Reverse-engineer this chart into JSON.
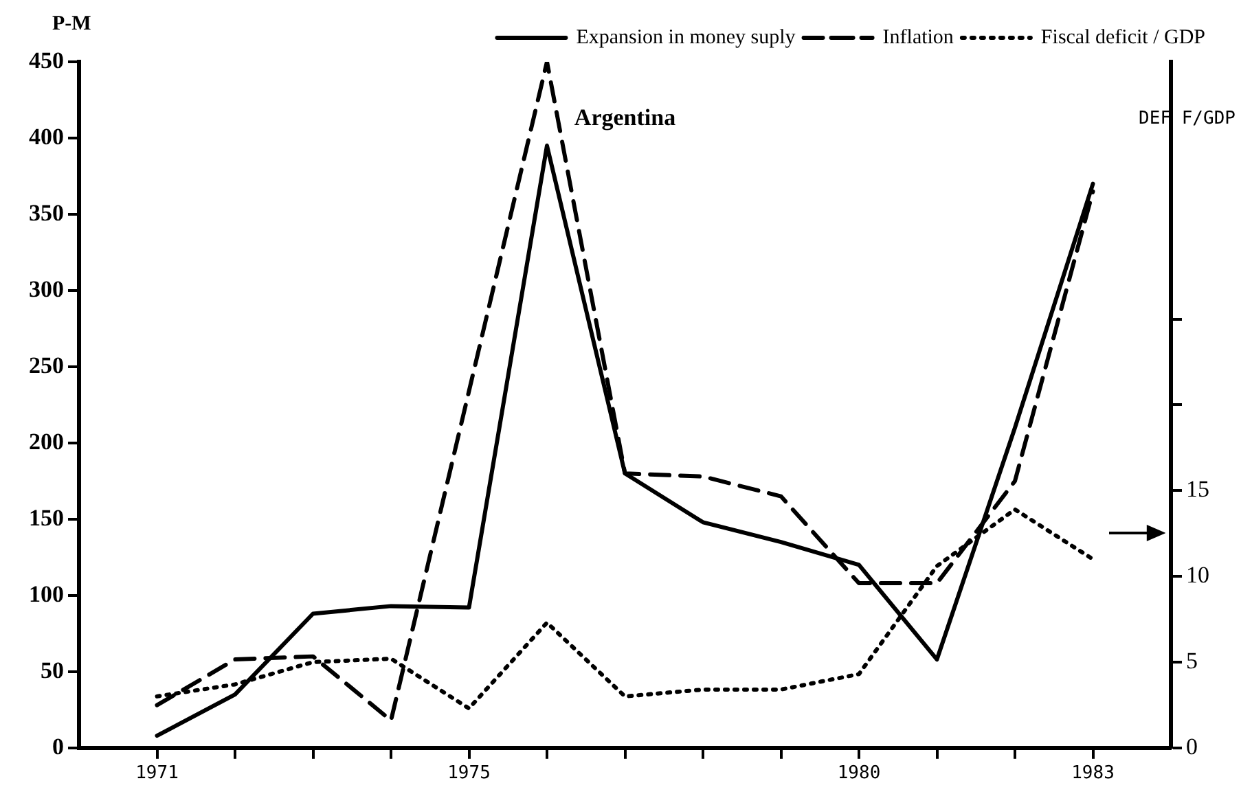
{
  "chart_data": {
    "type": "line",
    "title": "Argentina",
    "ylabel": "P-M",
    "y2label": "DEF F/GDP",
    "xlim": [
      1970,
      1984
    ],
    "xticks": [
      1971,
      {
        "value": 1972,
        "label": null
      },
      {
        "value": 1973,
        "label": null
      },
      {
        "value": 1974,
        "label": null
      },
      1975,
      {
        "value": 1976,
        "label": null
      },
      {
        "value": 1977,
        "label": null
      },
      {
        "value": 1978,
        "label": null
      },
      {
        "value": 1979,
        "label": null
      },
      1980,
      {
        "value": 1981,
        "label": null
      },
      {
        "value": 1982,
        "label": null
      },
      1983
    ],
    "ylim": [
      0,
      450
    ],
    "yticks": [
      0,
      50,
      100,
      150,
      200,
      250,
      300,
      350,
      400,
      450
    ],
    "y2lim": [
      0,
      40
    ],
    "y2ticks": [
      0,
      5,
      10,
      15,
      {
        "value": 20,
        "label": null
      },
      {
        "value": 25,
        "label": null
      }
    ],
    "grid": false,
    "legend": "top right",
    "marker": "none",
    "series": [
      {
        "name": "Expansion in money suply",
        "color": "#000000",
        "line_style": "solid",
        "x": [
          1971,
          1972,
          1973,
          1974,
          1975,
          1976,
          1977,
          1978,
          1979,
          1980,
          1981,
          1982,
          1983
        ],
        "values": [
          8,
          35,
          88,
          93,
          92,
          395,
          180,
          148,
          135,
          120,
          58,
          210,
          370
        ]
      },
      {
        "name": "Inflation",
        "color": "#000000",
        "line_style": "dashed",
        "x": [
          1971,
          1972,
          1973,
          1974,
          1976,
          1977,
          1978,
          1979,
          1980,
          1981,
          1982,
          1983
        ],
        "values": [
          28,
          58,
          60,
          18,
          450,
          180,
          178,
          165,
          108,
          108,
          175,
          365
        ]
      },
      {
        "name": "Fiscal deficit / GDP",
        "color": "#000000",
        "line_style": "dotted",
        "axis": "y2",
        "x": [
          1971,
          1972,
          1973,
          1974,
          1975,
          1976,
          1977,
          1978,
          1979,
          1980,
          1981,
          1982,
          1983
        ],
        "values": [
          3.0,
          3.7,
          5.0,
          5.2,
          2.3,
          7.3,
          3.0,
          3.4,
          3.4,
          4.3,
          10.6,
          13.9,
          11.0
        ]
      }
    ]
  }
}
